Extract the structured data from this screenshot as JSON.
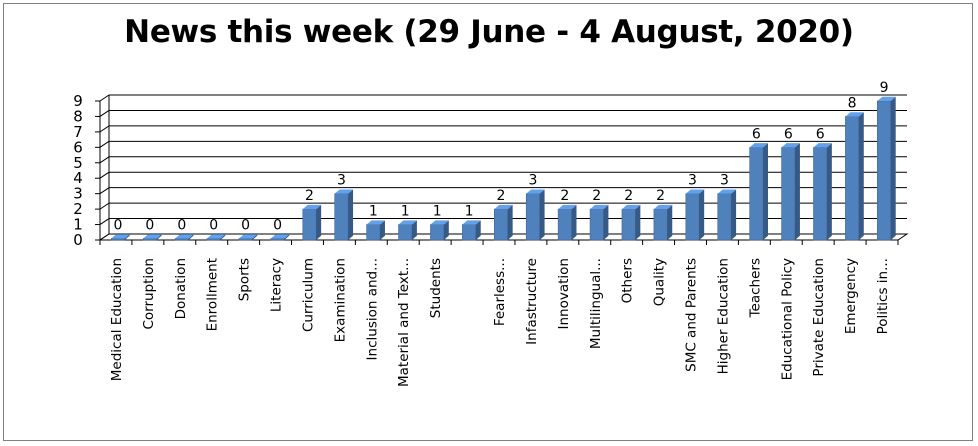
{
  "chart_data": {
    "type": "bar",
    "title": "News this week (29 June - 4 August, 2020)",
    "xlabel": "",
    "ylabel": "",
    "ylim": [
      0,
      9
    ],
    "yticks": [
      "0",
      "1",
      "2",
      "3",
      "4",
      "5",
      "6",
      "7",
      "8",
      "9"
    ],
    "grid": true,
    "legend": "none",
    "bar_color": "#4f81bd",
    "categories": [
      "Medical Education",
      "Corruption",
      "Donation",
      "Enrollment",
      "Sports",
      "Literacy",
      "Curriculum",
      "Examination",
      "Inclusion and...",
      "Material and Text...",
      "Students",
      "",
      "Fearless...",
      "Infastructure",
      "Innovation",
      "Multilingual...",
      "Others",
      "Quality",
      "SMC and Parents",
      "Higher Education",
      "Teachers",
      "Educational Policy",
      "Private Education",
      "Emergency",
      "Politics in..."
    ],
    "values": [
      0,
      0,
      0,
      0,
      0,
      0,
      2,
      3,
      1,
      1,
      1,
      1,
      2,
      3,
      2,
      2,
      2,
      2,
      3,
      3,
      6,
      6,
      6,
      8,
      9
    ],
    "data_labels": [
      "0",
      "0",
      "0",
      "0",
      "0",
      "0",
      "2",
      "3",
      "1",
      "1",
      "1",
      "1",
      "2",
      "3",
      "2",
      "2",
      "2",
      "2",
      "3",
      "3",
      "6",
      "6",
      "6",
      "8",
      "9"
    ]
  }
}
